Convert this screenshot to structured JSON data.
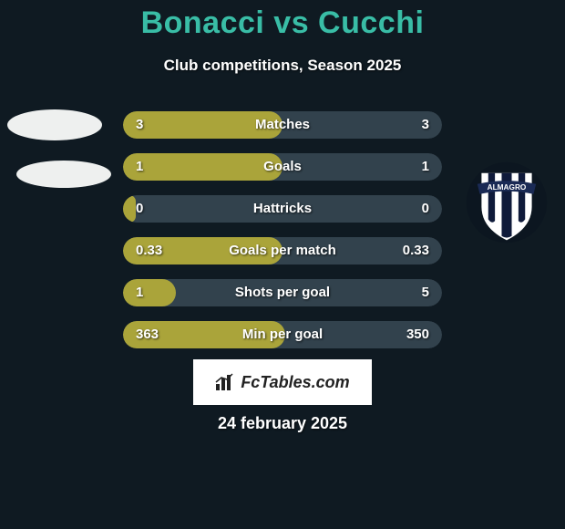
{
  "background_color": "#0f1a22",
  "title": {
    "text": "Bonacci vs Cucchi",
    "color": "#39bda6",
    "fontsize": 34
  },
  "subtitle": "Club competitions, Season 2025",
  "bar_base_color": "#32424d",
  "bar_left_color": "#aaa43a",
  "value_text_color": "#ffffff",
  "stats": [
    {
      "label": "Matches",
      "left_display": "3",
      "right_display": "3",
      "left_pct": 50.0
    },
    {
      "label": "Goals",
      "left_display": "1",
      "right_display": "1",
      "left_pct": 50.0
    },
    {
      "label": "Hattricks",
      "left_display": "0",
      "right_display": "0",
      "left_pct": 4.0
    },
    {
      "label": "Goals per match",
      "left_display": "0.33",
      "right_display": "0.33",
      "left_pct": 50.0
    },
    {
      "label": "Shots per goal",
      "left_display": "1",
      "right_display": "5",
      "left_pct": 16.7
    },
    {
      "label": "Min per goal",
      "left_display": "363",
      "right_display": "350",
      "left_pct": 50.9
    }
  ],
  "photo_placeholder_color": "#eef0ef",
  "crest": {
    "ring_bg": "#0c1620",
    "shield_bg": "#ffffff",
    "stripe_color": "#0f1a3a",
    "banner_color": "#1a2a55",
    "banner_text": "ALMAGRO",
    "banner_text_color": "#ffffff"
  },
  "brand": "FcTables.com",
  "date": "24 february 2025"
}
